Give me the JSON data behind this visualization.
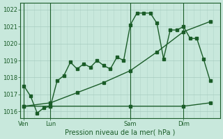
{
  "background_color": "#c8e8dc",
  "grid_color": "#a8ccc0",
  "line_color": "#1a5c28",
  "xlabel": "Pression niveau de la mer( hPa )",
  "ylim": [
    1015.6,
    1022.4
  ],
  "xlim": [
    0,
    60
  ],
  "yticks": [
    1016,
    1017,
    1018,
    1019,
    1020,
    1021,
    1022
  ],
  "day_labels": [
    "Ven",
    "Lun",
    "Sam",
    "Dim"
  ],
  "day_positions": [
    1,
    9,
    33,
    49
  ],
  "vline_positions": [
    1,
    9,
    33,
    49
  ],
  "series1_x": [
    1,
    3,
    5,
    7,
    9,
    11,
    13,
    15,
    17,
    19,
    21,
    23,
    25,
    27,
    29,
    31,
    33,
    35,
    37,
    39,
    41,
    43,
    45,
    47,
    49,
    51,
    53,
    55,
    57
  ],
  "series1_y": [
    1017.5,
    1016.9,
    1015.9,
    1016.2,
    1016.3,
    1017.8,
    1018.1,
    1018.9,
    1018.5,
    1018.8,
    1018.6,
    1019.0,
    1018.7,
    1018.5,
    1019.2,
    1019.0,
    1021.1,
    1021.8,
    1021.8,
    1021.8,
    1021.2,
    1019.1,
    1020.8,
    1020.8,
    1021.0,
    1020.3,
    1020.3,
    1019.1,
    1017.8
  ],
  "series2_x": [
    1,
    9,
    17,
    25,
    33,
    41,
    49,
    57
  ],
  "series2_y": [
    1016.3,
    1016.5,
    1017.1,
    1017.7,
    1018.4,
    1019.5,
    1020.7,
    1021.3
  ],
  "series3_x": [
    1,
    9,
    33,
    49,
    57
  ],
  "series3_y": [
    1016.3,
    1016.3,
    1016.3,
    1016.3,
    1016.5
  ],
  "marker_size": 2.5,
  "line_width": 1.0,
  "tick_fontsize": 6,
  "xlabel_fontsize": 7
}
